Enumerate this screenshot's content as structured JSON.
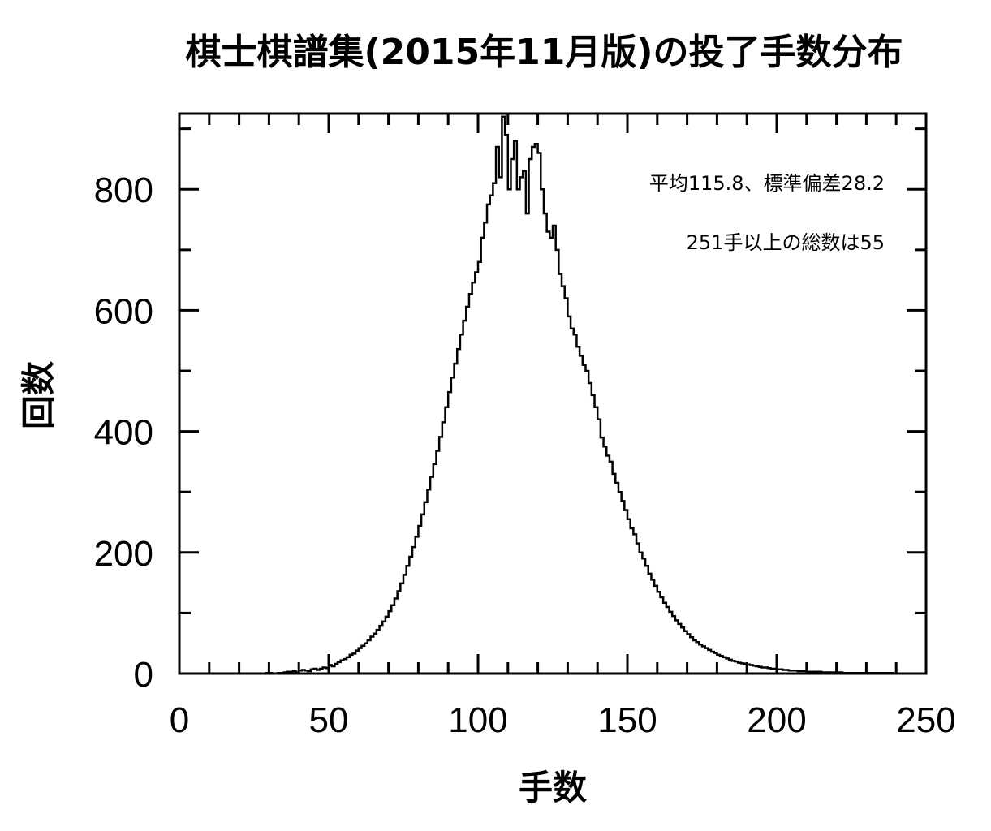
{
  "chart_data": {
    "type": "histogram",
    "title": "棋士棋譜集(2015年11月版)の投了手数分布",
    "xlabel": "手数",
    "ylabel": "回数",
    "xlim": [
      0,
      250
    ],
    "ylim": [
      0,
      925
    ],
    "x_ticks": [
      0,
      50,
      100,
      150,
      200,
      250
    ],
    "y_ticks": [
      0,
      200,
      400,
      600,
      800
    ],
    "bin_width": 1,
    "bin_start": 0,
    "annotations": [
      "平均115.8、標準偏差28.2",
      "251手以上の総数は55"
    ],
    "values": [
      0,
      0,
      0,
      0,
      0,
      0,
      0,
      0,
      0,
      0,
      0,
      0,
      0,
      0,
      0,
      0,
      0,
      0,
      0,
      0,
      0,
      0,
      0,
      0,
      0,
      0,
      0,
      0,
      0,
      1,
      1,
      0,
      0,
      1,
      1,
      2,
      3,
      3,
      4,
      2,
      5,
      6,
      5,
      4,
      7,
      8,
      6,
      8,
      10,
      9,
      14,
      12,
      16,
      19,
      22,
      24,
      27,
      31,
      33,
      38,
      42,
      46,
      50,
      55,
      61,
      66,
      72,
      79,
      86,
      94,
      103,
      113,
      124,
      136,
      149,
      163,
      178,
      193,
      209,
      226,
      244,
      263,
      283,
      304,
      325,
      346,
      368,
      391,
      415,
      440,
      465,
      489,
      512,
      536,
      560,
      583,
      606,
      627,
      646,
      663,
      680,
      720,
      745,
      775,
      790,
      810,
      870,
      820,
      920,
      890,
      800,
      850,
      880,
      800,
      820,
      830,
      760,
      850,
      870,
      875,
      860,
      800,
      760,
      730,
      720,
      740,
      700,
      660,
      640,
      620,
      590,
      570,
      560,
      540,
      525,
      510,
      500,
      480,
      460,
      440,
      420,
      390,
      375,
      360,
      350,
      330,
      315,
      300,
      285,
      270,
      255,
      240,
      230,
      215,
      200,
      190,
      178,
      165,
      155,
      145,
      135,
      126,
      117,
      110,
      102,
      95,
      88,
      82,
      76,
      70,
      65,
      60,
      55,
      52,
      48,
      45,
      42,
      39,
      36,
      34,
      31,
      29,
      27,
      25,
      23,
      21,
      20,
      18,
      17,
      16,
      15,
      14,
      13,
      12,
      11,
      10,
      10,
      9,
      8,
      8,
      7,
      7,
      6,
      6,
      5,
      5,
      5,
      4,
      4,
      4,
      3,
      3,
      3,
      3,
      3,
      2,
      2,
      2,
      2,
      2,
      2,
      2,
      1,
      1,
      1,
      1,
      1,
      1,
      1,
      1,
      1,
      1,
      1,
      1,
      1,
      1,
      1,
      1,
      1,
      0
    ]
  }
}
